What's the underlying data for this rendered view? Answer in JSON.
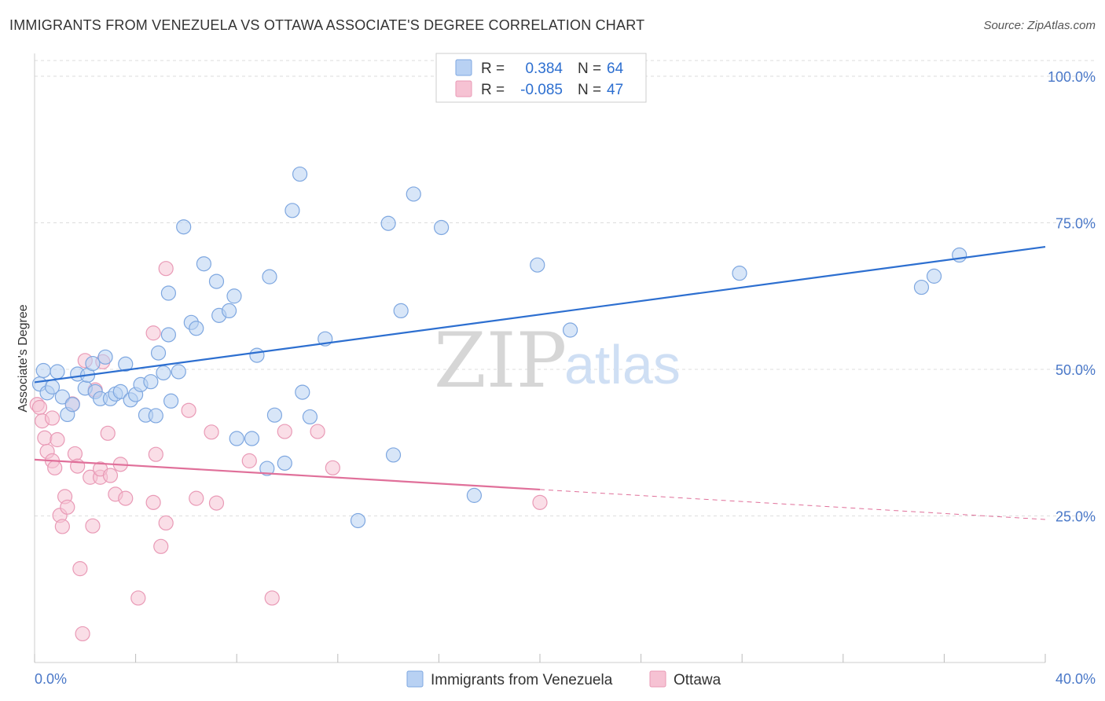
{
  "header": {
    "title": "IMMIGRANTS FROM VENEZUELA VS OTTAWA ASSOCIATE'S DEGREE CORRELATION CHART",
    "source": "Source: ZipAtlas.com"
  },
  "watermark": {
    "part1": "ZIP",
    "part2": "atlas"
  },
  "colors": {
    "blue": "#2d6fd0",
    "blue_fill": "#b8d1f3",
    "pink": "#e0709a",
    "pink_fill": "#f6c2d3",
    "grid": "#dddddd",
    "tick_text": "#4a78c8"
  },
  "legend": {
    "rows": [
      {
        "r_label": "R =",
        "r_value": "0.384",
        "n_label": "N =",
        "n_value": "64"
      },
      {
        "r_label": "R =",
        "r_value": "-0.085",
        "n_label": "N =",
        "n_value": "47"
      }
    ]
  },
  "chart_data": {
    "type": "scatter",
    "title": "IMMIGRANTS FROM VENEZUELA VS OTTAWA ASSOCIATE'S DEGREE CORRELATION CHART",
    "xlabel": "",
    "ylabel": "Associate's Degree",
    "xlim": [
      0,
      40
    ],
    "ylim": [
      0,
      105
    ],
    "x_tick_labels": [
      "0.0%",
      "40.0%"
    ],
    "y_ticks": [
      25,
      50,
      75,
      100
    ],
    "y_tick_labels": [
      "25.0%",
      "50.0%",
      "75.0%",
      "100.0%"
    ],
    "legend_position": "top-center",
    "series": [
      {
        "name": "Immigrants from Venezuela",
        "color": "#2d6fd0",
        "R": 0.384,
        "N": 64,
        "trend": {
          "x": [
            0,
            40
          ],
          "y": [
            47.8,
            70.9
          ]
        },
        "points": [
          [
            0.2,
            47.5
          ],
          [
            0.35,
            49.8
          ],
          [
            0.5,
            46.0
          ],
          [
            0.7,
            47.0
          ],
          [
            0.9,
            49.6
          ],
          [
            1.1,
            45.3
          ],
          [
            1.3,
            42.3
          ],
          [
            1.5,
            44.0
          ],
          [
            1.7,
            49.2
          ],
          [
            2.0,
            46.8
          ],
          [
            2.1,
            49.0
          ],
          [
            2.3,
            51.0
          ],
          [
            2.4,
            46.2
          ],
          [
            2.6,
            45.0
          ],
          [
            2.8,
            52.1
          ],
          [
            3.0,
            45.0
          ],
          [
            3.2,
            45.8
          ],
          [
            3.4,
            46.2
          ],
          [
            3.6,
            50.9
          ],
          [
            3.8,
            44.8
          ],
          [
            4.0,
            45.7
          ],
          [
            4.2,
            47.4
          ],
          [
            4.4,
            42.2
          ],
          [
            4.6,
            47.9
          ],
          [
            4.8,
            42.1
          ],
          [
            4.9,
            52.8
          ],
          [
            5.1,
            49.4
          ],
          [
            5.3,
            63.0
          ],
          [
            5.3,
            55.9
          ],
          [
            5.4,
            44.6
          ],
          [
            5.7,
            49.6
          ],
          [
            5.9,
            74.3
          ],
          [
            6.2,
            58.0
          ],
          [
            6.4,
            57.0
          ],
          [
            6.7,
            68.0
          ],
          [
            7.2,
            65.0
          ],
          [
            7.3,
            59.2
          ],
          [
            7.7,
            60.0
          ],
          [
            7.9,
            62.5
          ],
          [
            8.0,
            38.2
          ],
          [
            8.6,
            38.2
          ],
          [
            8.8,
            52.4
          ],
          [
            9.2,
            33.1
          ],
          [
            9.3,
            65.8
          ],
          [
            9.5,
            42.2
          ],
          [
            9.9,
            34.0
          ],
          [
            10.2,
            77.1
          ],
          [
            10.5,
            83.3
          ],
          [
            10.6,
            46.1
          ],
          [
            10.9,
            41.9
          ],
          [
            11.5,
            55.2
          ],
          [
            12.8,
            24.2
          ],
          [
            14.0,
            74.9
          ],
          [
            14.2,
            35.4
          ],
          [
            14.5,
            60.0
          ],
          [
            15.0,
            79.9
          ],
          [
            16.1,
            74.2
          ],
          [
            17.4,
            28.5
          ],
          [
            19.9,
            67.8
          ],
          [
            21.2,
            56.7
          ],
          [
            27.9,
            66.4
          ],
          [
            35.1,
            64.0
          ],
          [
            35.6,
            65.9
          ],
          [
            36.6,
            69.5
          ]
        ]
      },
      {
        "name": "Ottawa",
        "color": "#e0709a",
        "R": -0.085,
        "N": 47,
        "trend": {
          "x": [
            0,
            20
          ],
          "y": [
            34.6,
            29.5
          ]
        },
        "trend_dashed": {
          "x": [
            20,
            40
          ],
          "y": [
            29.5,
            24.4
          ]
        },
        "points": [
          [
            0.1,
            44.0
          ],
          [
            0.2,
            43.5
          ],
          [
            0.3,
            41.2
          ],
          [
            0.4,
            38.3
          ],
          [
            0.5,
            36.0
          ],
          [
            0.7,
            41.7
          ],
          [
            0.7,
            34.4
          ],
          [
            0.8,
            33.2
          ],
          [
            0.9,
            38.0
          ],
          [
            1.0,
            25.1
          ],
          [
            1.1,
            23.2
          ],
          [
            1.2,
            28.3
          ],
          [
            1.3,
            26.5
          ],
          [
            1.5,
            44.1
          ],
          [
            1.6,
            35.6
          ],
          [
            1.7,
            33.5
          ],
          [
            1.8,
            16.0
          ],
          [
            1.9,
            4.9
          ],
          [
            2.0,
            51.5
          ],
          [
            2.2,
            31.6
          ],
          [
            2.3,
            23.3
          ],
          [
            2.4,
            46.5
          ],
          [
            2.6,
            31.6
          ],
          [
            2.6,
            33.0
          ],
          [
            2.7,
            51.3
          ],
          [
            2.9,
            39.1
          ],
          [
            3.0,
            31.9
          ],
          [
            3.2,
            28.7
          ],
          [
            3.4,
            33.8
          ],
          [
            3.6,
            28.0
          ],
          [
            4.1,
            11.0
          ],
          [
            4.7,
            56.2
          ],
          [
            4.7,
            27.3
          ],
          [
            4.8,
            35.5
          ],
          [
            5.0,
            19.8
          ],
          [
            5.2,
            23.8
          ],
          [
            5.2,
            67.2
          ],
          [
            6.1,
            43.0
          ],
          [
            6.4,
            28.0
          ],
          [
            7.0,
            39.3
          ],
          [
            7.2,
            27.2
          ],
          [
            8.5,
            34.4
          ],
          [
            9.4,
            11.0
          ],
          [
            9.9,
            39.4
          ],
          [
            11.2,
            39.4
          ],
          [
            11.8,
            33.2
          ],
          [
            20.0,
            27.3
          ]
        ]
      }
    ]
  }
}
